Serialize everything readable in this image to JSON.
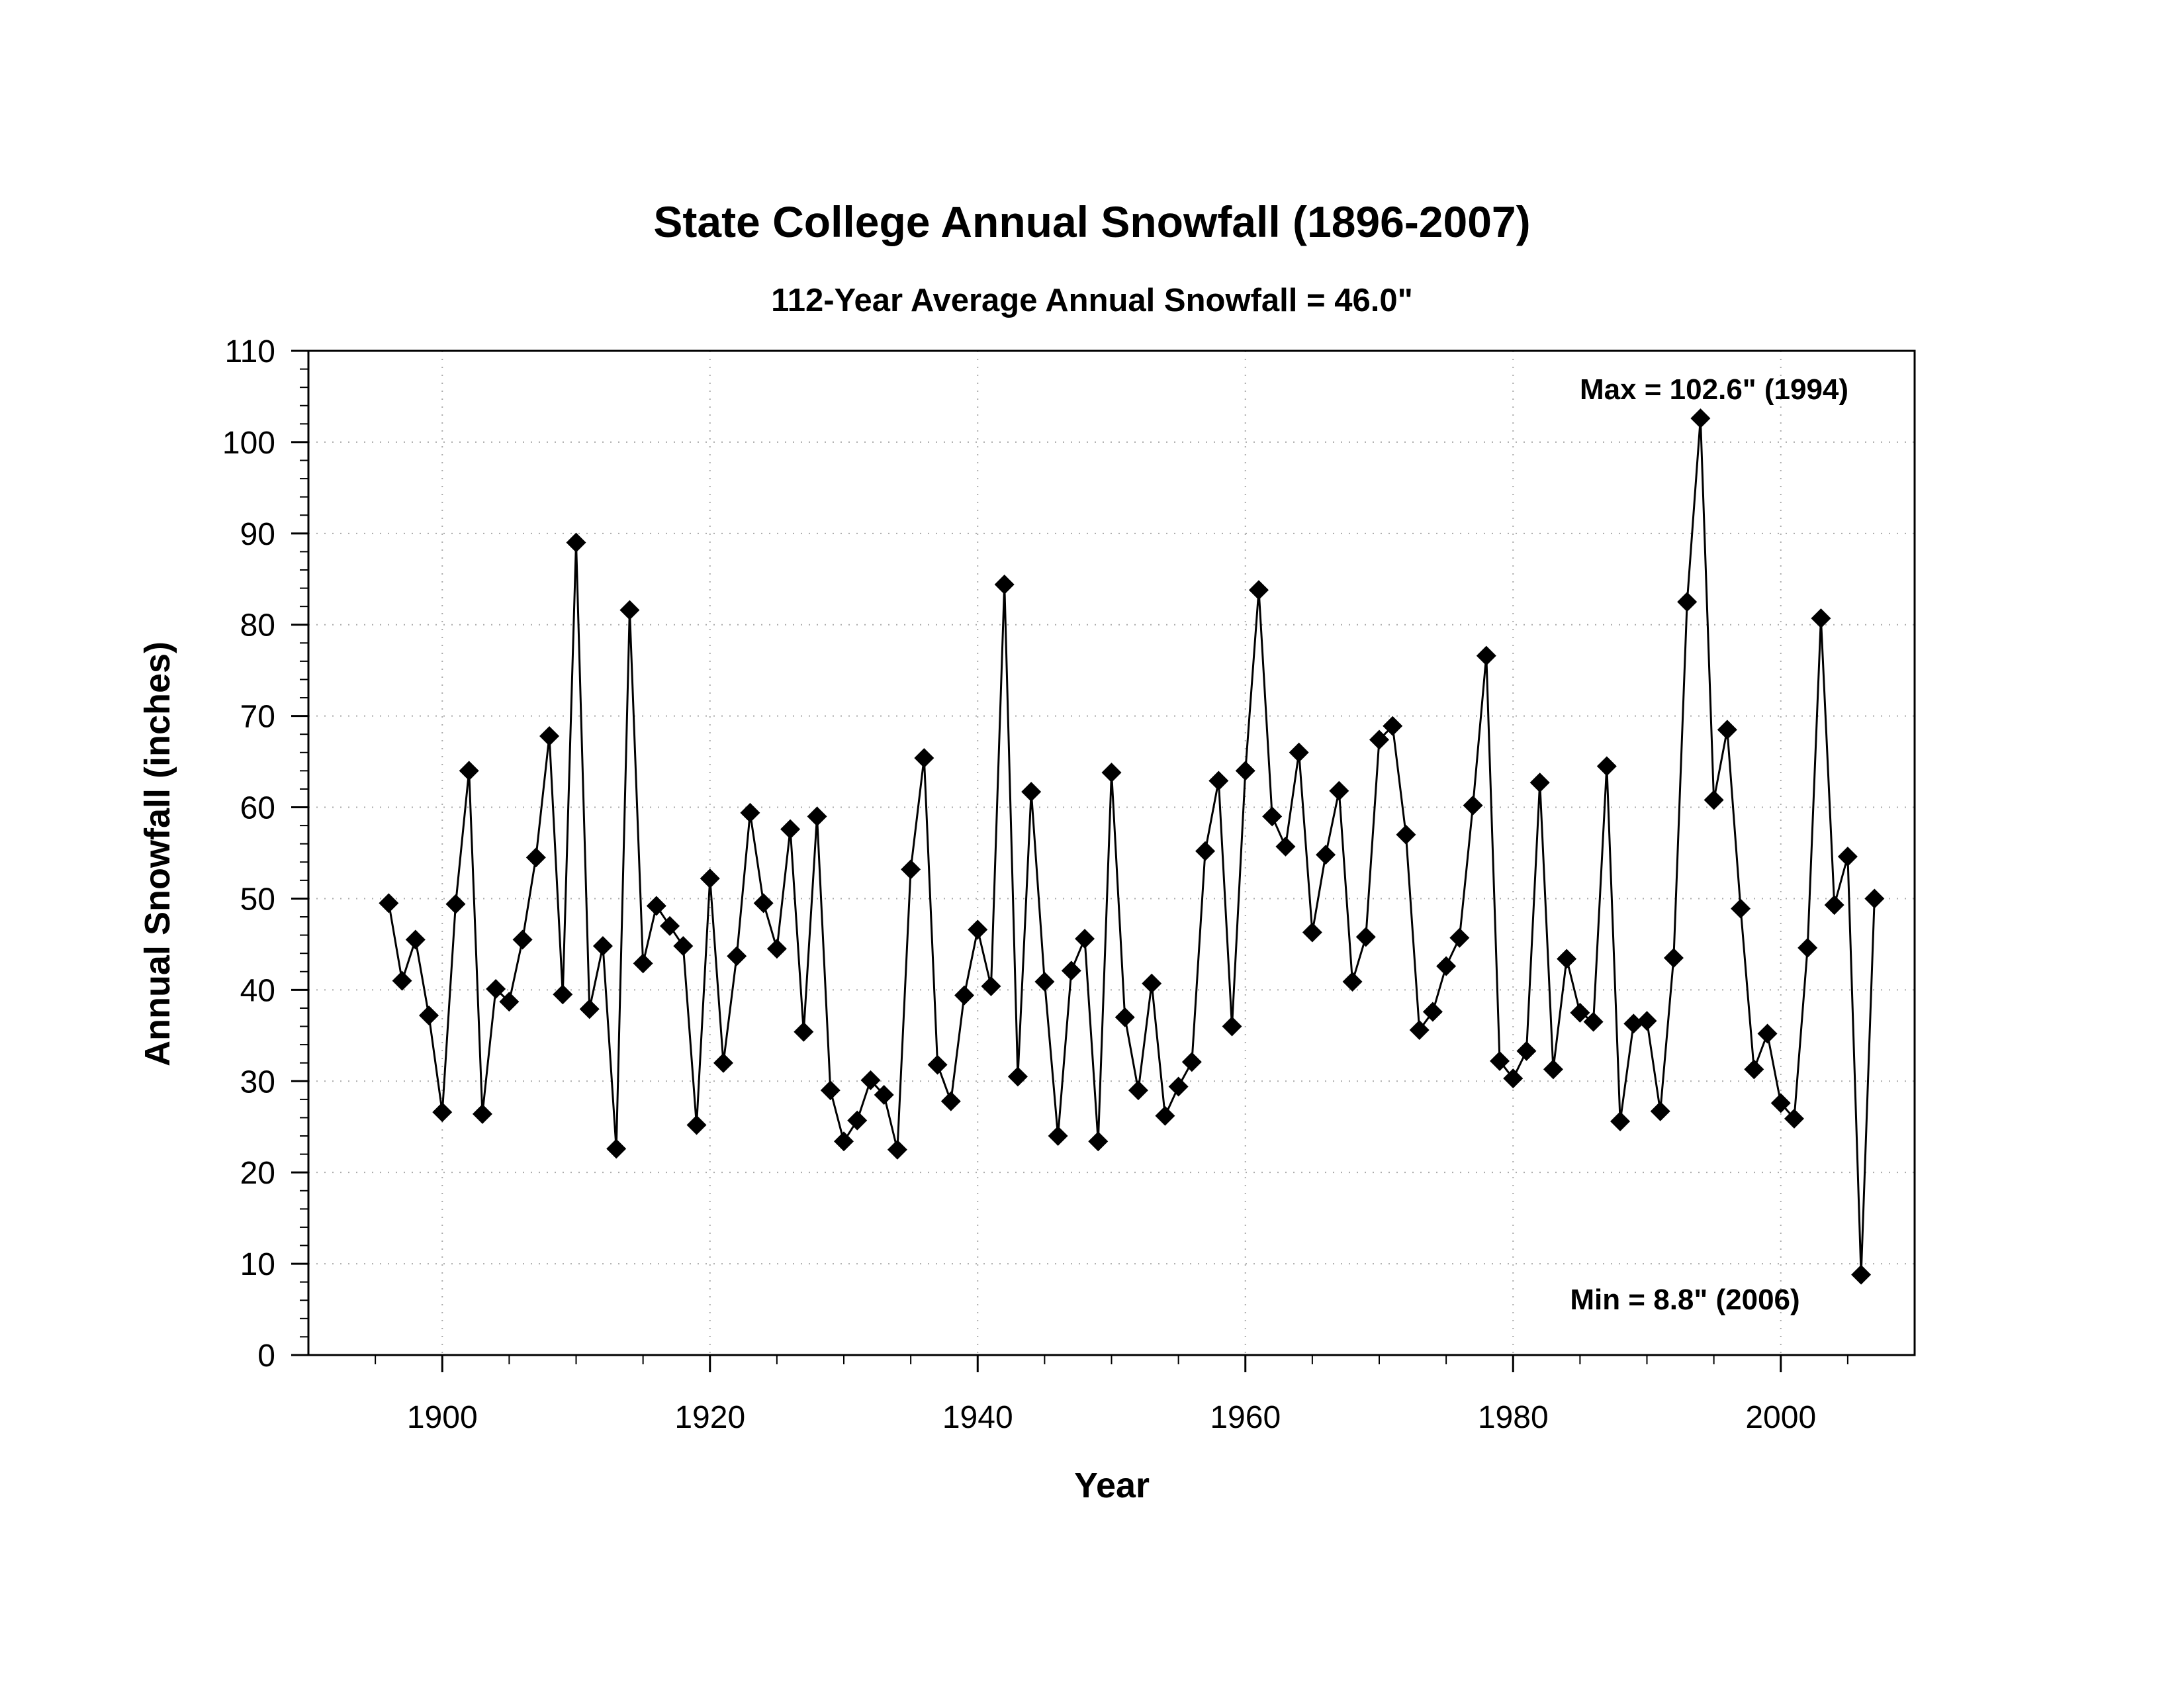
{
  "chart_data": {
    "type": "line",
    "title": "State College Annual Snowfall  (1896-2007)",
    "subtitle": "112-Year Average Annual Snowfall = 46.0\"",
    "xlabel": "Year",
    "ylabel": "Annual Snowfall  (inches)",
    "xlim": [
      1890,
      2010
    ],
    "ylim": [
      0,
      110
    ],
    "xticks": [
      1900,
      1920,
      1940,
      1960,
      1980,
      2000
    ],
    "yticks": [
      0,
      10,
      20,
      30,
      40,
      50,
      60,
      70,
      80,
      90,
      100,
      110
    ],
    "grid": true,
    "marker": "diamond",
    "color": "#000000",
    "annotations": [
      {
        "text": "Max = 102.6\"  (1994)",
        "x": 1994,
        "y": 102.6
      },
      {
        "text": "Min = 8.8\"  (2006)",
        "x": 2006,
        "y": 8.8
      }
    ],
    "x": [
      1896,
      1897,
      1898,
      1899,
      1900,
      1901,
      1902,
      1903,
      1904,
      1905,
      1906,
      1907,
      1908,
      1909,
      1910,
      1911,
      1912,
      1913,
      1914,
      1915,
      1916,
      1917,
      1918,
      1919,
      1920,
      1921,
      1922,
      1923,
      1924,
      1925,
      1926,
      1927,
      1928,
      1929,
      1930,
      1931,
      1932,
      1933,
      1934,
      1935,
      1936,
      1937,
      1938,
      1939,
      1940,
      1941,
      1942,
      1943,
      1944,
      1945,
      1946,
      1947,
      1948,
      1949,
      1950,
      1951,
      1952,
      1953,
      1954,
      1955,
      1956,
      1957,
      1958,
      1959,
      1960,
      1961,
      1962,
      1963,
      1964,
      1965,
      1966,
      1967,
      1968,
      1969,
      1970,
      1971,
      1972,
      1973,
      1974,
      1975,
      1976,
      1977,
      1978,
      1979,
      1980,
      1981,
      1982,
      1983,
      1984,
      1985,
      1986,
      1987,
      1988,
      1989,
      1990,
      1991,
      1992,
      1993,
      1994,
      1995,
      1996,
      1997,
      1998,
      1999,
      2000,
      2001,
      2002,
      2003,
      2004,
      2005,
      2006,
      2007
    ],
    "series": [
      {
        "values": [
          49.5,
          41.0,
          45.5,
          37.2,
          26.6,
          49.4,
          64.0,
          26.4,
          40.1,
          38.7,
          45.5,
          54.5,
          67.8,
          39.5,
          89.0,
          37.9,
          44.8,
          22.6,
          81.6,
          42.9,
          49.2,
          47.0,
          44.8,
          25.2,
          52.2,
          32.0,
          43.7,
          59.4,
          49.5,
          44.5,
          57.6,
          35.4,
          59.0,
          29.0,
          23.4,
          25.7,
          30.1,
          28.5,
          22.5,
          53.2,
          65.4,
          31.8,
          27.8,
          39.4,
          46.6,
          40.4,
          84.4,
          30.5,
          61.7,
          40.9,
          24.0,
          42.1,
          45.6,
          23.4,
          63.8,
          37.0,
          29.0,
          40.7,
          26.2,
          29.4,
          32.1,
          55.2,
          62.9,
          36.0,
          64.0,
          83.8,
          59.0,
          55.7,
          66.0,
          46.3,
          54.8,
          61.8,
          40.9,
          45.8,
          67.4,
          68.9,
          57.0,
          35.6,
          37.6,
          42.6,
          45.7,
          60.2,
          76.6,
          32.2,
          30.3,
          33.3,
          62.7,
          31.3,
          43.4,
          37.5,
          36.5,
          64.5,
          25.6,
          36.3,
          36.6,
          26.7,
          43.5,
          82.5,
          102.6,
          60.8,
          68.5,
          48.9,
          31.3,
          35.2,
          27.6,
          25.9,
          44.6,
          80.7,
          49.3,
          54.6,
          8.8,
          50.0
        ]
      }
    ]
  }
}
